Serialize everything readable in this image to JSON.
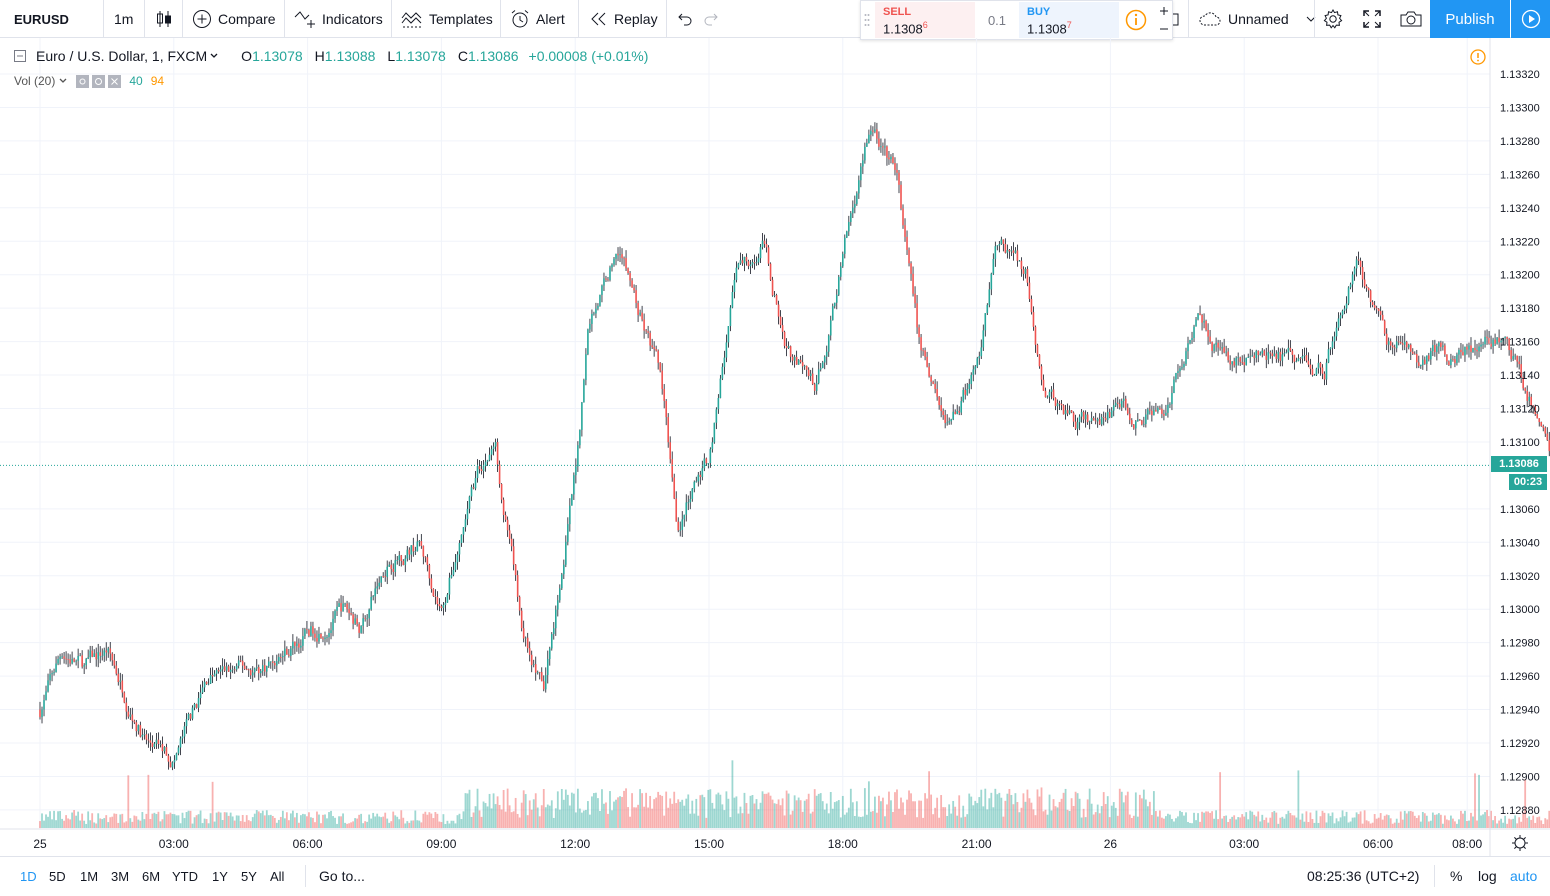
{
  "toolbar": {
    "symbol": "EURUSD",
    "interval": "1m",
    "compare": "Compare",
    "indicators": "Indicators",
    "templates": "Templates",
    "alert": "Alert",
    "replay": "Replay",
    "layout_name": "Unnamed",
    "publish": "Publish"
  },
  "trade": {
    "sell_label": "SELL",
    "sell_price": "1.1308",
    "sell_sup": "6",
    "spread": "0.1",
    "buy_label": "BUY",
    "buy_price": "1.1308",
    "buy_sup": "7"
  },
  "legend": {
    "title": "Euro / U.S. Dollar, 1, FXCM",
    "o_label": "O",
    "o": "1.13078",
    "h_label": "H",
    "h": "1.13088",
    "l_label": "L",
    "l": "1.13078",
    "c_label": "C",
    "c": "1.13086",
    "change": "+0.00008 (+0.01%)",
    "vol_label": "Vol (20)",
    "vol_value": "40",
    "vol_ma": "94"
  },
  "colors": {
    "up": "#26a69a",
    "down": "#ef5350",
    "accent": "#2196f3",
    "grid": "#f0f3fa"
  },
  "price_label": "1.13086",
  "countdown": "00:23",
  "chart_data": {
    "type": "candlestick",
    "symbol": "EURUSD",
    "interval": "1",
    "source": "FXCM",
    "y_ticks": [
      "1.13320",
      "1.13300",
      "1.13280",
      "1.13260",
      "1.13240",
      "1.13220",
      "1.13200",
      "1.13180",
      "1.13160",
      "1.13140",
      "1.13120",
      "1.13100",
      "1.13060",
      "1.13040",
      "1.13020",
      "1.13000",
      "1.12980",
      "1.12960",
      "1.12940",
      "1.12920",
      "1.12900",
      "1.12880"
    ],
    "x_ticks": [
      "25",
      "03:00",
      "06:00",
      "09:00",
      "12:00",
      "15:00",
      "18:00",
      "21:00",
      "26",
      "03:00",
      "06:00",
      "08:00"
    ],
    "path": [
      {
        "t": 0,
        "p": 1.1294
      },
      {
        "t": 0.5,
        "p": 1.12975
      },
      {
        "t": 1,
        "p": 1.12965
      },
      {
        "t": 1.5,
        "p": 1.12975
      },
      {
        "t": 2.4,
        "p": 1.1292
      },
      {
        "t": 3,
        "p": 1.1291
      },
      {
        "t": 3.8,
        "p": 1.1296
      },
      {
        "t": 5,
        "p": 1.12965
      },
      {
        "t": 6,
        "p": 1.12985
      },
      {
        "t": 6.8,
        "p": 1.13
      },
      {
        "t": 7.2,
        "p": 1.1299
      },
      {
        "t": 7.8,
        "p": 1.1303
      },
      {
        "t": 8.5,
        "p": 1.1304
      },
      {
        "t": 9,
        "p": 1.13
      },
      {
        "t": 9.8,
        "p": 1.1308
      },
      {
        "t": 10.2,
        "p": 1.131
      },
      {
        "t": 10.8,
        "p": 1.1299
      },
      {
        "t": 11.3,
        "p": 1.1295
      },
      {
        "t": 12,
        "p": 1.1308
      },
      {
        "t": 12.3,
        "p": 1.1317
      },
      {
        "t": 13,
        "p": 1.1322
      },
      {
        "t": 13.4,
        "p": 1.1318
      },
      {
        "t": 13.9,
        "p": 1.1314
      },
      {
        "t": 14.3,
        "p": 1.1305
      },
      {
        "t": 15,
        "p": 1.1309
      },
      {
        "t": 15.6,
        "p": 1.132
      },
      {
        "t": 16.2,
        "p": 1.1322
      },
      {
        "t": 16.7,
        "p": 1.1316
      },
      {
        "t": 17.4,
        "p": 1.1313
      },
      {
        "t": 18,
        "p": 1.1321
      },
      {
        "t": 18.6,
        "p": 1.1329
      },
      {
        "t": 19.2,
        "p": 1.1326
      },
      {
        "t": 19.7,
        "p": 1.1316
      },
      {
        "t": 20.3,
        "p": 1.1311
      },
      {
        "t": 21,
        "p": 1.1314
      },
      {
        "t": 21.5,
        "p": 1.1322
      },
      {
        "t": 22.1,
        "p": 1.132
      },
      {
        "t": 22.5,
        "p": 1.13125
      },
      {
        "t": 23.5,
        "p": 1.1311
      },
      {
        "t": 24.3,
        "p": 1.1312
      },
      {
        "t": 25.2,
        "p": 1.13115
      },
      {
        "t": 26,
        "p": 1.13185
      },
      {
        "t": 26.5,
        "p": 1.1315
      },
      {
        "t": 28,
        "p": 1.1315
      },
      {
        "t": 28.8,
        "p": 1.13145
      },
      {
        "t": 29.5,
        "p": 1.1321
      },
      {
        "t": 30.2,
        "p": 1.1316
      },
      {
        "t": 31,
        "p": 1.1315
      },
      {
        "t": 32,
        "p": 1.13155
      },
      {
        "t": 32.8,
        "p": 1.1316
      },
      {
        "t": 33.2,
        "p": 1.1314
      },
      {
        "t": 33.8,
        "p": 1.131
      },
      {
        "t": 34.3,
        "p": 1.1307
      },
      {
        "t": 34.6,
        "p": 1.13086
      }
    ]
  }
}
